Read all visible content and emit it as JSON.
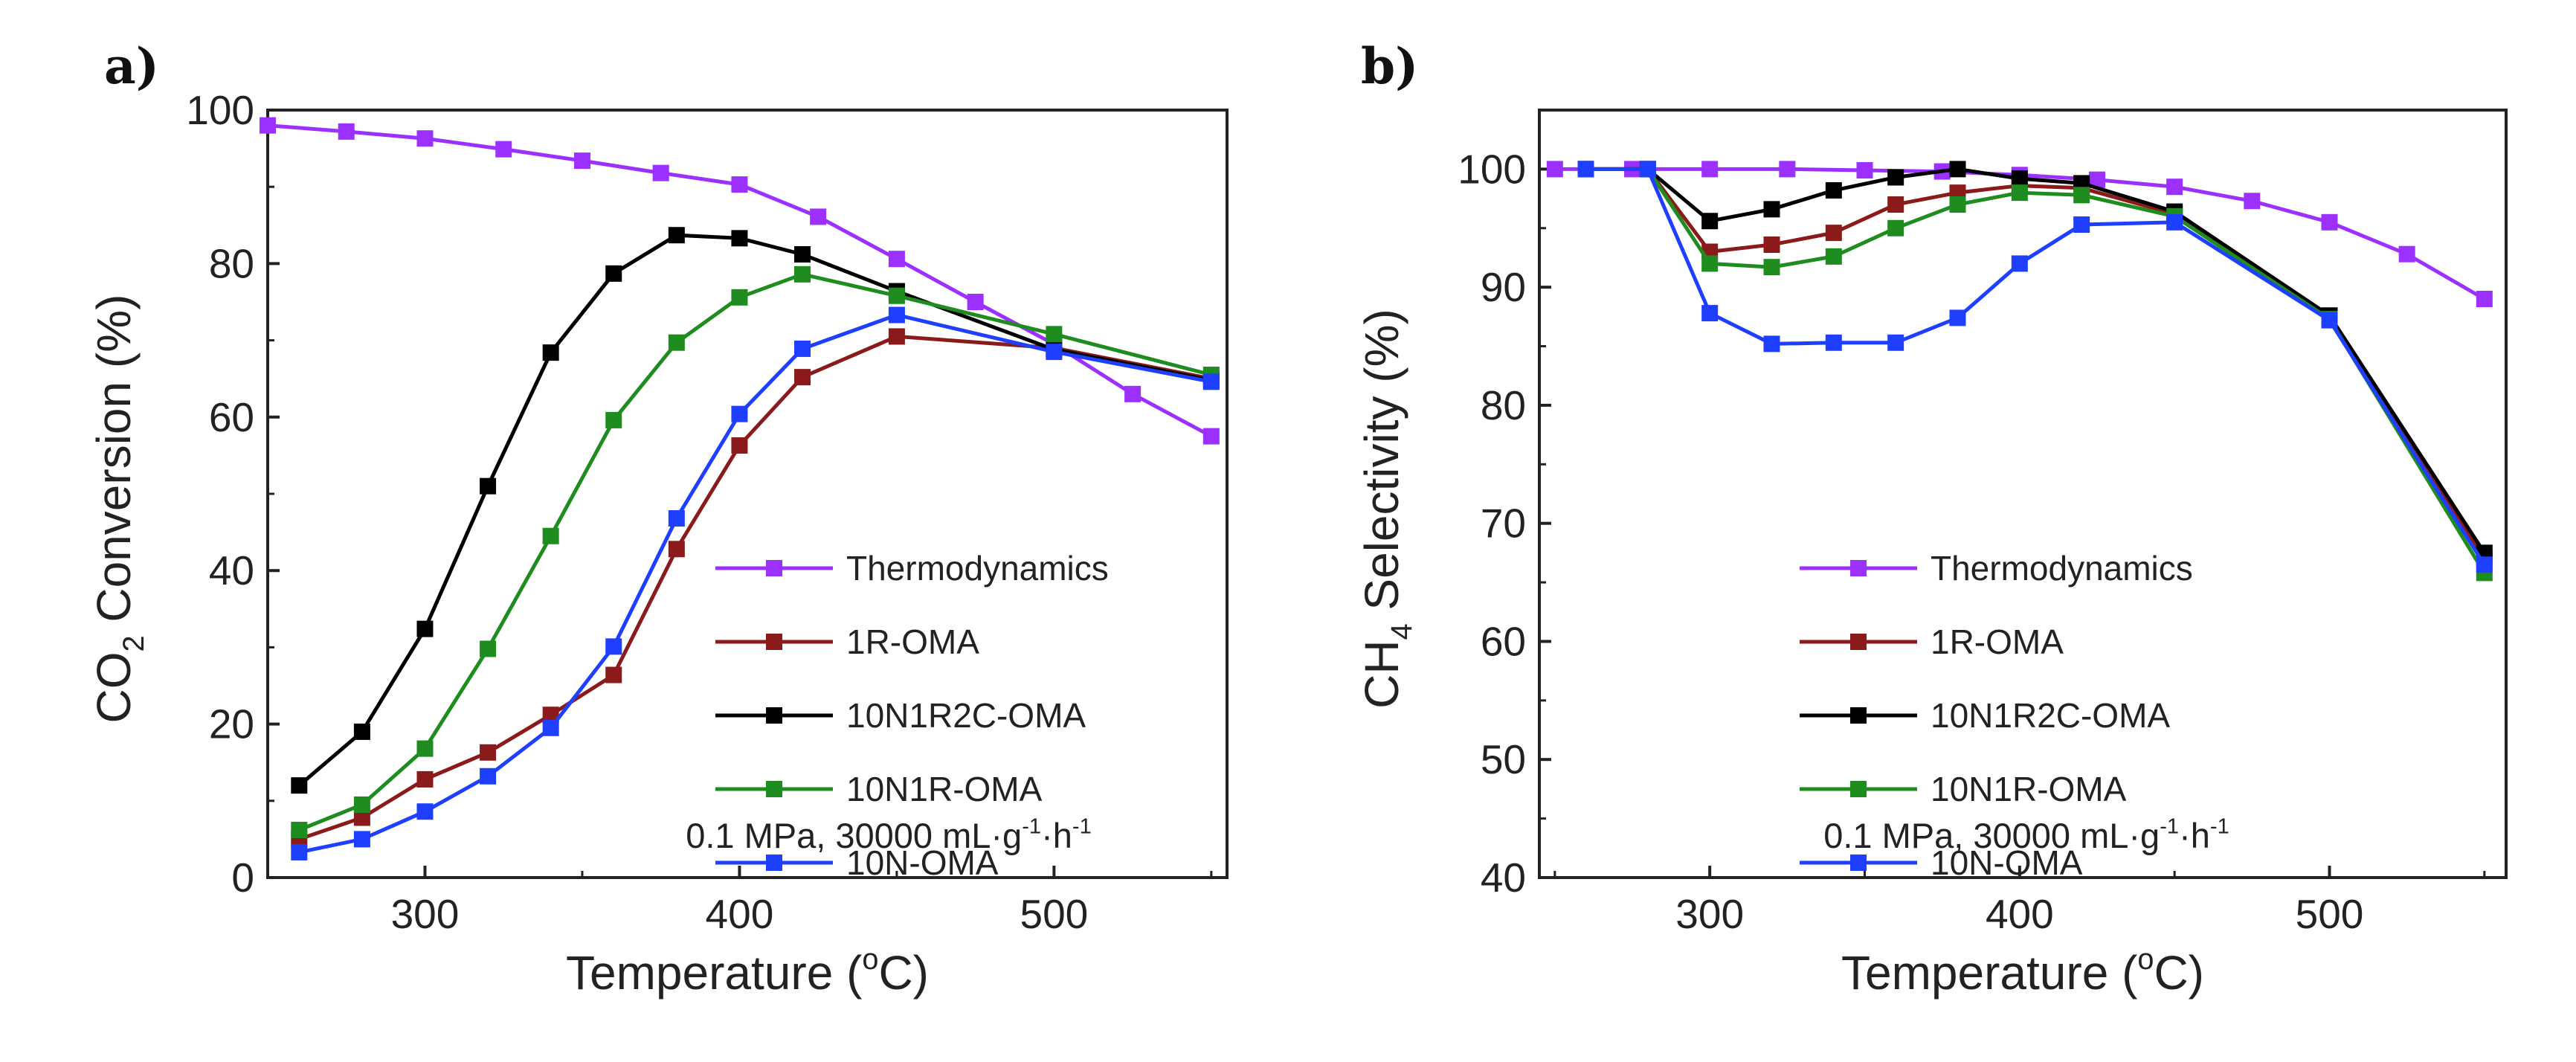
{
  "figure": {
    "panel_a": {
      "letter": "a)"
    },
    "panel_b": {
      "letter": "b)"
    }
  },
  "chart_data": [
    {
      "id": "a",
      "type": "line",
      "panel_label": "a)",
      "title": "",
      "xlabel": "Temperature (°C)",
      "ylabel": "CO2 Conversion (%)",
      "xlim": [
        250,
        555
      ],
      "ylim": [
        0,
        100
      ],
      "xticks": [
        300,
        400,
        500
      ],
      "yticks": [
        0,
        20,
        40,
        60,
        80,
        100
      ],
      "annotation": "0.1 MPa, 30000 mL·g⁻¹·h⁻¹",
      "legend_position": "lower-right",
      "series": [
        {
          "name": "Thermodynamics",
          "color": "#9b30ff",
          "points": [
            [
              250,
              98.0
            ],
            [
              275,
              97.2
            ],
            [
              300,
              96.3
            ],
            [
              325,
              94.9
            ],
            [
              350,
              93.4
            ],
            [
              375,
              91.8
            ],
            [
              400,
              90.3
            ],
            [
              425,
              86.1
            ],
            [
              450,
              80.6
            ],
            [
              475,
              75.0
            ],
            [
              500,
              69.5
            ],
            [
              525,
              63.0
            ],
            [
              550,
              57.5
            ]
          ]
        },
        {
          "name": "1R-OMA",
          "color": "#8b1a1a",
          "points": [
            [
              260,
              5.0
            ],
            [
              280,
              7.8
            ],
            [
              300,
              12.8
            ],
            [
              320,
              16.3
            ],
            [
              340,
              21.2
            ],
            [
              360,
              26.4
            ],
            [
              380,
              42.8
            ],
            [
              400,
              56.3
            ],
            [
              420,
              65.2
            ],
            [
              450,
              70.5
            ],
            [
              500,
              69.0
            ],
            [
              550,
              65.0
            ]
          ]
        },
        {
          "name": "10N1R2C-OMA",
          "color": "#000000",
          "points": [
            [
              260,
              12.0
            ],
            [
              280,
              19.0
            ],
            [
              300,
              32.4
            ],
            [
              320,
              51.0
            ],
            [
              340,
              68.4
            ],
            [
              360,
              78.7
            ],
            [
              380,
              83.7
            ],
            [
              400,
              83.3
            ],
            [
              420,
              81.2
            ],
            [
              450,
              76.4
            ],
            [
              500,
              68.8
            ],
            [
              550,
              64.8
            ]
          ]
        },
        {
          "name": "10N1R-OMA",
          "color": "#1e8c1e",
          "points": [
            [
              260,
              6.2
            ],
            [
              280,
              9.5
            ],
            [
              300,
              16.8
            ],
            [
              320,
              29.8
            ],
            [
              340,
              44.5
            ],
            [
              360,
              59.6
            ],
            [
              380,
              69.7
            ],
            [
              400,
              75.6
            ],
            [
              420,
              78.6
            ],
            [
              450,
              75.8
            ],
            [
              500,
              70.8
            ],
            [
              550,
              65.5
            ]
          ]
        },
        {
          "name": "10N-OMA",
          "color": "#1f3fff",
          "points": [
            [
              260,
              3.3
            ],
            [
              280,
              5.0
            ],
            [
              300,
              8.6
            ],
            [
              320,
              13.2
            ],
            [
              340,
              19.5
            ],
            [
              360,
              30.1
            ],
            [
              380,
              46.8
            ],
            [
              400,
              60.4
            ],
            [
              420,
              68.9
            ],
            [
              450,
              73.3
            ],
            [
              500,
              68.5
            ],
            [
              550,
              64.6
            ]
          ]
        }
      ]
    },
    {
      "id": "b",
      "type": "line",
      "panel_label": "b)",
      "title": "",
      "xlabel": "Temperature (°C)",
      "ylabel": "CH4 Selectivity (%)",
      "xlim": [
        245,
        557
      ],
      "ylim": [
        40,
        105
      ],
      "xticks": [
        300,
        400,
        500
      ],
      "yticks": [
        40,
        50,
        60,
        70,
        80,
        90,
        100
      ],
      "annotation": "0.1 MPa, 30000 mL·g⁻¹·h⁻¹",
      "legend_position": "lower-center",
      "series": [
        {
          "name": "Thermodynamics",
          "color": "#9b30ff",
          "points": [
            [
              250,
              100.0
            ],
            [
              275,
              100.0
            ],
            [
              300,
              100.0
            ],
            [
              325,
              100.0
            ],
            [
              350,
              99.9
            ],
            [
              375,
              99.8
            ],
            [
              400,
              99.5
            ],
            [
              425,
              99.1
            ],
            [
              450,
              98.5
            ],
            [
              475,
              97.3
            ],
            [
              500,
              95.5
            ],
            [
              525,
              92.8
            ],
            [
              550,
              89.0
            ]
          ]
        },
        {
          "name": "1R-OMA",
          "color": "#8b1a1a",
          "points": [
            [
              260,
              100.0
            ],
            [
              280,
              100.0
            ],
            [
              300,
              93.0
            ],
            [
              320,
              93.6
            ],
            [
              340,
              94.6
            ],
            [
              360,
              97.0
            ],
            [
              380,
              98.0
            ],
            [
              400,
              98.6
            ],
            [
              420,
              98.4
            ],
            [
              450,
              96.2
            ],
            [
              500,
              87.5
            ],
            [
              550,
              67.0
            ]
          ]
        },
        {
          "name": "10N1R2C-OMA",
          "color": "#000000",
          "points": [
            [
              260,
              100.0
            ],
            [
              280,
              100.0
            ],
            [
              300,
              95.6
            ],
            [
              320,
              96.6
            ],
            [
              340,
              98.2
            ],
            [
              360,
              99.3
            ],
            [
              380,
              100.0
            ],
            [
              400,
              99.2
            ],
            [
              420,
              98.8
            ],
            [
              450,
              96.4
            ],
            [
              500,
              87.6
            ],
            [
              550,
              67.5
            ]
          ]
        },
        {
          "name": "10N1R-OMA",
          "color": "#1e8c1e",
          "points": [
            [
              260,
              100.0
            ],
            [
              280,
              100.0
            ],
            [
              300,
              92.0
            ],
            [
              320,
              91.7
            ],
            [
              340,
              92.6
            ],
            [
              360,
              95.0
            ],
            [
              380,
              97.0
            ],
            [
              400,
              98.0
            ],
            [
              420,
              97.8
            ],
            [
              450,
              96.0
            ],
            [
              500,
              87.3
            ],
            [
              550,
              65.8
            ]
          ]
        },
        {
          "name": "10N-OMA",
          "color": "#1f3fff",
          "points": [
            [
              260,
              100.0
            ],
            [
              280,
              100.0
            ],
            [
              300,
              87.8
            ],
            [
              320,
              85.2
            ],
            [
              340,
              85.3
            ],
            [
              360,
              85.3
            ],
            [
              380,
              87.4
            ],
            [
              400,
              92.0
            ],
            [
              420,
              95.3
            ],
            [
              450,
              95.5
            ],
            [
              500,
              87.2
            ],
            [
              550,
              66.5
            ]
          ]
        }
      ]
    }
  ]
}
